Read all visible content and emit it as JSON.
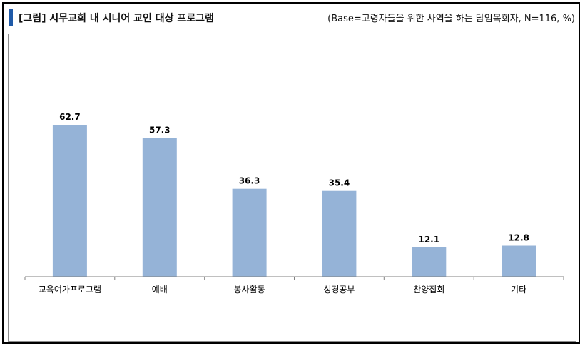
{
  "header": {
    "title": "[그림] 시무교회 내 시니어 교인 대상 프로그램",
    "base": "(Base=고령자들을 위한 사역을 하는 담임목회자, N=116, %)"
  },
  "colors": {
    "accent": "#1f5aa8",
    "bar": "#95b3d7",
    "axis": "#808080"
  },
  "chart_data": {
    "type": "bar",
    "categories": [
      "교육여가프로그램",
      "예배",
      "봉사활동",
      "성경공부",
      "찬양집회",
      "기타"
    ],
    "values": [
      62.7,
      57.3,
      36.3,
      35.4,
      12.1,
      12.8
    ],
    "value_labels": [
      "62.7",
      "57.3",
      "36.3",
      "35.4",
      "12.1",
      "12.8"
    ],
    "title": "",
    "xlabel": "",
    "ylabel": "",
    "ylim": [
      0,
      70
    ],
    "grid": false,
    "legend": "none"
  }
}
